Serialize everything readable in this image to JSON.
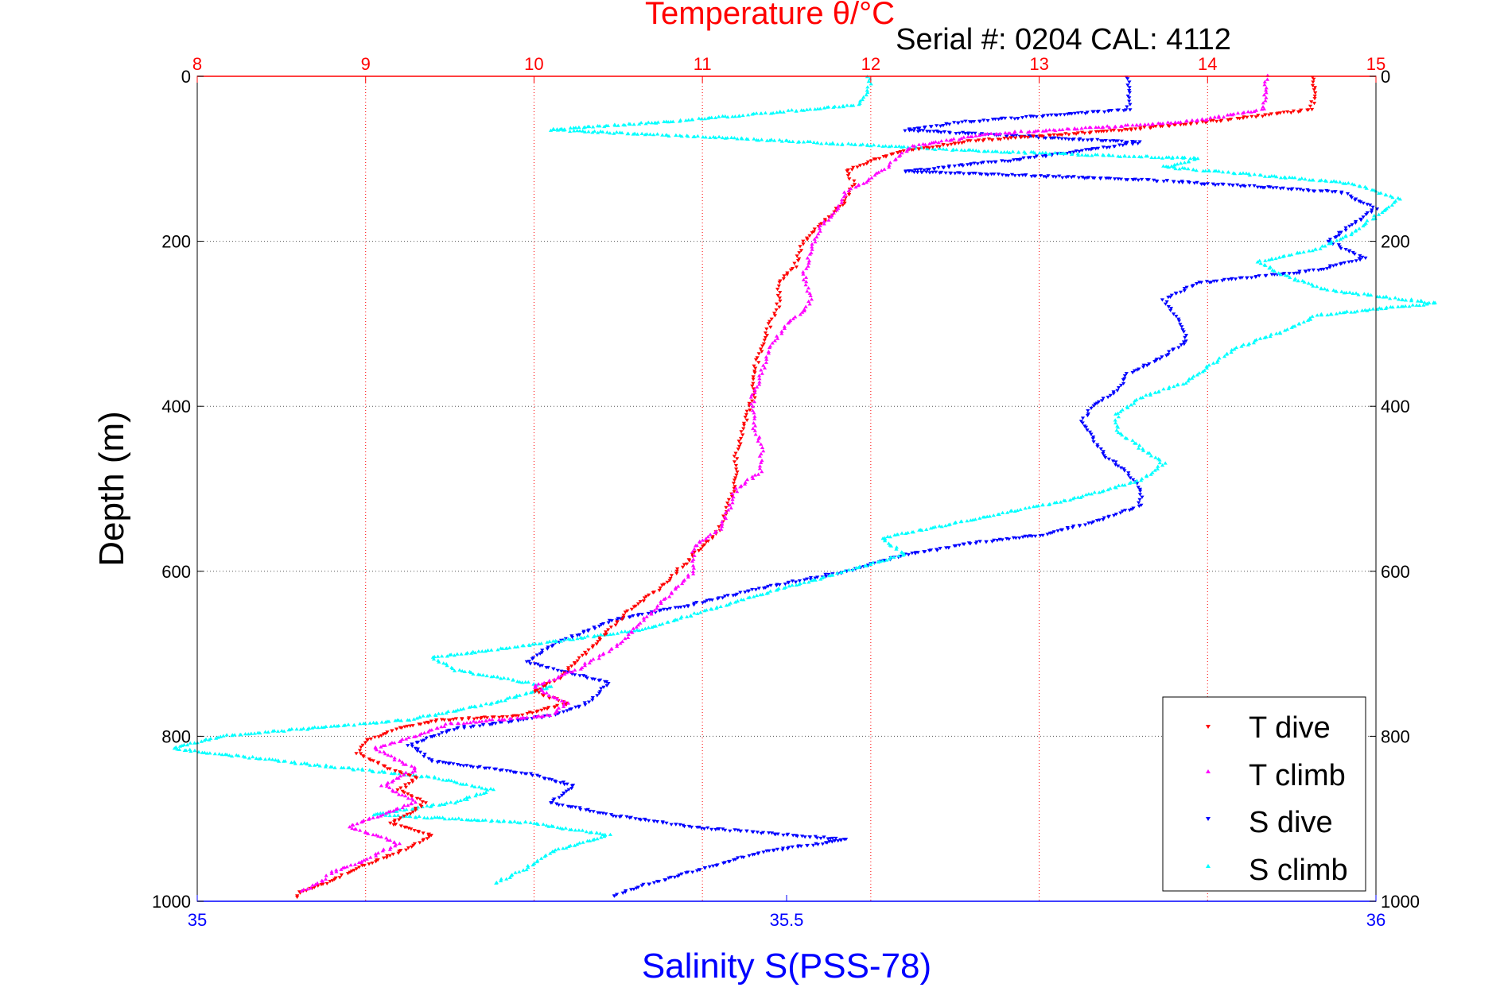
{
  "chart_data": {
    "type": "scatter",
    "title": "Temperature θ/°C",
    "subtitle": "Serial #: 0204  CAL: 4112",
    "ylabel": "Depth (m)",
    "xlabel": "Salinity S(PSS-78)",
    "y_axis": {
      "range": [
        0,
        1000
      ],
      "inverted": true,
      "ticks": [
        "0",
        "200",
        "400",
        "600",
        "800",
        "1000"
      ],
      "tick_values": [
        0,
        200,
        400,
        600,
        800,
        1000
      ],
      "grid": true
    },
    "x_top_axis": {
      "quantity": "temperature",
      "color": "#ff0000",
      "range": [
        8,
        15
      ],
      "ticks": [
        "8",
        "9",
        "10",
        "11",
        "12",
        "13",
        "14",
        "15"
      ],
      "tick_values": [
        8,
        9,
        10,
        11,
        12,
        13,
        14,
        15
      ],
      "grid": true
    },
    "x_bottom_axis": {
      "quantity": "salinity",
      "color": "#0000ff",
      "range": [
        35,
        36
      ],
      "ticks": [
        "35",
        "35.5",
        "36"
      ],
      "tick_values": [
        35,
        35.5,
        36
      ]
    },
    "legend": {
      "placement": "bottom-right"
    },
    "series": [
      {
        "name": "T dive",
        "color": "#ff0000",
        "marker": "triangle-down",
        "axis": "temperature",
        "points": [
          [
            14.63,
            0
          ],
          [
            14.63,
            20
          ],
          [
            14.62,
            40
          ],
          [
            14.3,
            48
          ],
          [
            14.0,
            55
          ],
          [
            13.5,
            65
          ],
          [
            12.6,
            78
          ],
          [
            12.15,
            92
          ],
          [
            12.0,
            102
          ],
          [
            11.85,
            115
          ],
          [
            11.9,
            130
          ],
          [
            11.85,
            150
          ],
          [
            11.75,
            170
          ],
          [
            11.6,
            200
          ],
          [
            11.55,
            230
          ],
          [
            11.45,
            250
          ],
          [
            11.45,
            280
          ],
          [
            11.4,
            300
          ],
          [
            11.35,
            330
          ],
          [
            11.3,
            360
          ],
          [
            11.3,
            390
          ],
          [
            11.25,
            420
          ],
          [
            11.2,
            460
          ],
          [
            11.2,
            490
          ],
          [
            11.15,
            520
          ],
          [
            11.1,
            550
          ],
          [
            11.0,
            570
          ],
          [
            10.9,
            590
          ],
          [
            10.75,
            620
          ],
          [
            10.55,
            650
          ],
          [
            10.4,
            680
          ],
          [
            10.3,
            700
          ],
          [
            10.15,
            730
          ],
          [
            10.0,
            745
          ],
          [
            10.2,
            760
          ],
          [
            9.9,
            775
          ],
          [
            9.45,
            780
          ],
          [
            9.2,
            790
          ],
          [
            9.0,
            805
          ],
          [
            8.95,
            820
          ],
          [
            9.15,
            840
          ],
          [
            9.3,
            850
          ],
          [
            9.2,
            865
          ],
          [
            9.35,
            880
          ],
          [
            9.25,
            895
          ],
          [
            9.15,
            905
          ],
          [
            9.4,
            920
          ],
          [
            9.2,
            940
          ],
          [
            8.95,
            960
          ],
          [
            8.8,
            975
          ],
          [
            8.6,
            990
          ],
          [
            8.58,
            998
          ]
        ]
      },
      {
        "name": "T climb",
        "color": "#ff00ff",
        "marker": "triangle-up",
        "axis": "temperature",
        "points": [
          [
            14.35,
            0
          ],
          [
            14.35,
            20
          ],
          [
            14.33,
            40
          ],
          [
            14.0,
            52
          ],
          [
            13.7,
            58
          ],
          [
            12.7,
            70
          ],
          [
            12.25,
            85
          ],
          [
            12.15,
            100
          ],
          [
            12.1,
            110
          ],
          [
            12.0,
            125
          ],
          [
            11.85,
            140
          ],
          [
            11.8,
            160
          ],
          [
            11.7,
            185
          ],
          [
            11.65,
            210
          ],
          [
            11.6,
            240
          ],
          [
            11.65,
            270
          ],
          [
            11.6,
            285
          ],
          [
            11.5,
            300
          ],
          [
            11.4,
            330
          ],
          [
            11.35,
            360
          ],
          [
            11.3,
            390
          ],
          [
            11.3,
            420
          ],
          [
            11.35,
            450
          ],
          [
            11.35,
            480
          ],
          [
            11.2,
            500
          ],
          [
            11.15,
            530
          ],
          [
            11.1,
            550
          ],
          [
            10.95,
            570
          ],
          [
            10.95,
            600
          ],
          [
            10.8,
            630
          ],
          [
            10.65,
            660
          ],
          [
            10.5,
            690
          ],
          [
            10.25,
            720
          ],
          [
            10.0,
            740
          ],
          [
            10.2,
            760
          ],
          [
            10.1,
            775
          ],
          [
            9.5,
            785
          ],
          [
            9.3,
            800
          ],
          [
            9.05,
            815
          ],
          [
            9.3,
            840
          ],
          [
            9.1,
            860
          ],
          [
            9.3,
            880
          ],
          [
            9.1,
            895
          ],
          [
            8.9,
            910
          ],
          [
            9.2,
            930
          ],
          [
            9.0,
            950
          ],
          [
            8.8,
            965
          ],
          [
            8.75,
            975
          ],
          [
            8.6,
            990
          ]
        ]
      },
      {
        "name": "S dive",
        "color": "#0000ff",
        "marker": "triangle-down",
        "axis": "salinity",
        "points": [
          [
            35.79,
            0
          ],
          [
            35.79,
            20
          ],
          [
            35.79,
            40
          ],
          [
            35.65,
            55
          ],
          [
            35.6,
            65
          ],
          [
            35.8,
            80
          ],
          [
            35.7,
            100
          ],
          [
            35.6,
            115
          ],
          [
            35.8,
            125
          ],
          [
            35.97,
            140
          ],
          [
            36.0,
            160
          ],
          [
            35.98,
            180
          ],
          [
            35.96,
            200
          ],
          [
            35.99,
            220
          ],
          [
            35.95,
            235
          ],
          [
            35.85,
            250
          ],
          [
            35.82,
            270
          ],
          [
            35.83,
            290
          ],
          [
            35.84,
            320
          ],
          [
            35.82,
            340
          ],
          [
            35.79,
            360
          ],
          [
            35.78,
            380
          ],
          [
            35.76,
            400
          ],
          [
            35.75,
            420
          ],
          [
            35.76,
            440
          ],
          [
            35.77,
            460
          ],
          [
            35.79,
            480
          ],
          [
            35.8,
            500
          ],
          [
            35.8,
            520
          ],
          [
            35.76,
            540
          ],
          [
            35.72,
            555
          ],
          [
            35.66,
            565
          ],
          [
            35.6,
            580
          ],
          [
            35.55,
            600
          ],
          [
            35.48,
            620
          ],
          [
            35.42,
            640
          ],
          [
            35.35,
            660
          ],
          [
            35.3,
            690
          ],
          [
            35.28,
            710
          ],
          [
            35.35,
            735
          ],
          [
            35.33,
            760
          ],
          [
            35.3,
            775
          ],
          [
            35.22,
            790
          ],
          [
            35.18,
            810
          ],
          [
            35.2,
            830
          ],
          [
            35.28,
            845
          ],
          [
            35.32,
            860
          ],
          [
            35.3,
            880
          ],
          [
            35.35,
            895
          ],
          [
            35.42,
            910
          ],
          [
            35.55,
            925
          ],
          [
            35.48,
            940
          ],
          [
            35.43,
            960
          ],
          [
            35.38,
            980
          ],
          [
            35.35,
            995
          ]
        ]
      },
      {
        "name": "S climb",
        "color": "#00ffff",
        "marker": "triangle-up",
        "axis": "salinity",
        "points": [
          [
            35.57,
            0
          ],
          [
            35.57,
            20
          ],
          [
            35.56,
            35
          ],
          [
            35.48,
            45
          ],
          [
            35.4,
            55
          ],
          [
            35.3,
            65
          ],
          [
            35.45,
            75
          ],
          [
            35.65,
            90
          ],
          [
            35.85,
            100
          ],
          [
            35.82,
            110
          ],
          [
            35.9,
            120
          ],
          [
            35.98,
            130
          ],
          [
            36.02,
            150
          ],
          [
            36.0,
            170
          ],
          [
            35.98,
            190
          ],
          [
            35.95,
            210
          ],
          [
            35.9,
            225
          ],
          [
            35.92,
            240
          ],
          [
            35.96,
            260
          ],
          [
            36.05,
            275
          ],
          [
            35.95,
            290
          ],
          [
            35.92,
            310
          ],
          [
            35.88,
            330
          ],
          [
            35.86,
            350
          ],
          [
            35.84,
            370
          ],
          [
            35.8,
            390
          ],
          [
            35.78,
            410
          ],
          [
            35.78,
            430
          ],
          [
            35.8,
            450
          ],
          [
            35.82,
            470
          ],
          [
            35.8,
            490
          ],
          [
            35.75,
            510
          ],
          [
            35.7,
            525
          ],
          [
            35.65,
            540
          ],
          [
            35.58,
            560
          ],
          [
            35.6,
            580
          ],
          [
            35.55,
            600
          ],
          [
            35.5,
            620
          ],
          [
            35.45,
            640
          ],
          [
            35.38,
            670
          ],
          [
            35.28,
            690
          ],
          [
            35.2,
            705
          ],
          [
            35.22,
            720
          ],
          [
            35.3,
            740
          ],
          [
            35.25,
            760
          ],
          [
            35.18,
            780
          ],
          [
            35.02,
            800
          ],
          [
            34.98,
            815
          ],
          [
            35.1,
            835
          ],
          [
            35.2,
            850
          ],
          [
            35.25,
            865
          ],
          [
            35.22,
            880
          ],
          [
            35.15,
            895
          ],
          [
            35.28,
            905
          ],
          [
            35.35,
            920
          ],
          [
            35.3,
            940
          ],
          [
            35.28,
            960
          ],
          [
            35.25,
            980
          ]
        ]
      }
    ]
  }
}
